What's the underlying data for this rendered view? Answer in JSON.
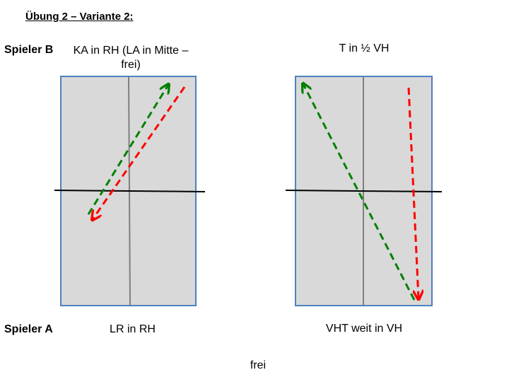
{
  "title": "Übung 2 – Variante 2:",
  "player_b": {
    "label": "Spieler B",
    "left_desc": "KA in RH (LA in Mitte – frei)",
    "right_desc": "T in ½ VH"
  },
  "player_a": {
    "label": "Spieler A",
    "left_desc": "LR in RH",
    "right_desc": "VHT weit in VH"
  },
  "footer": "frei",
  "colors": {
    "table_fill": "#d9d9d9",
    "table_border": "#4f81bd",
    "center_line": "#7f7f7f",
    "net": "#000000",
    "arrow_green": "#008000",
    "arrow_red": "#ff0000"
  }
}
